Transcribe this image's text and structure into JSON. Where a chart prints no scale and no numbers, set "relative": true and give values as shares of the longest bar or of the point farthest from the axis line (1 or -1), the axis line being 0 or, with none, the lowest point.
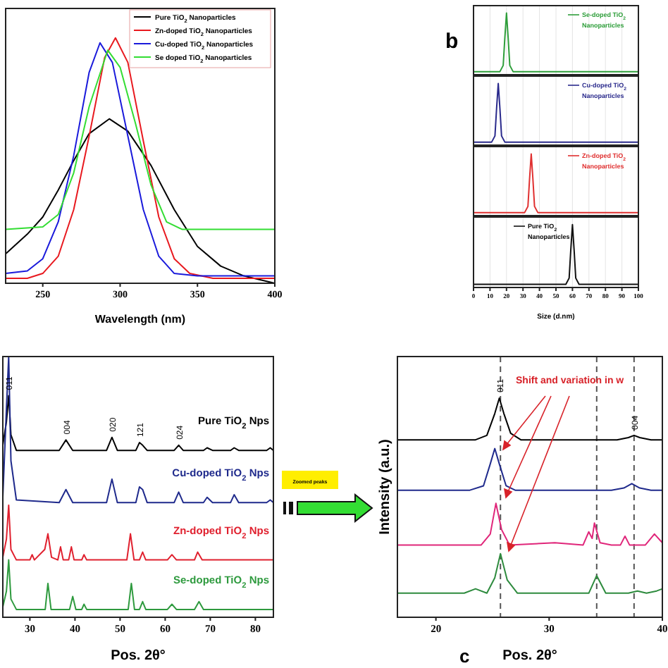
{
  "chart_data": [
    {
      "type": "line",
      "xlabel": "Wavelength (nm)",
      "xlim": [
        226,
        400
      ],
      "xticks": [
        250,
        300,
        350,
        400
      ],
      "relative": true,
      "legend": "top right",
      "series": [
        {
          "name": "Pure TiO$_{2}$ Nanoparticles",
          "color": "#000000",
          "x": [
            226,
            240,
            250,
            260,
            270,
            280,
            293,
            305,
            320,
            335,
            350,
            365,
            380,
            400
          ],
          "values": [
            0.12,
            0.2,
            0.27,
            0.38,
            0.5,
            0.61,
            0.67,
            0.62,
            0.48,
            0.3,
            0.15,
            0.07,
            0.03,
            0
          ]
        },
        {
          "name": "Zn-doped TiO$_{2}$ Nanoparticles",
          "color": "#e8191f",
          "x": [
            226,
            240,
            250,
            260,
            270,
            280,
            290,
            297,
            305,
            315,
            325,
            335,
            345,
            360,
            380,
            400
          ],
          "values": [
            0.02,
            0.02,
            0.04,
            0.11,
            0.3,
            0.6,
            0.92,
            1,
            0.9,
            0.58,
            0.27,
            0.1,
            0.04,
            0.02,
            0.02,
            0.02
          ]
        },
        {
          "name": "Cu-doped TiO$_{2}$ Nanoparticles",
          "color": "#1a1adb",
          "x": [
            226,
            240,
            250,
            260,
            270,
            280,
            287,
            295,
            305,
            315,
            325,
            335,
            350,
            400
          ],
          "values": [
            0.04,
            0.05,
            0.1,
            0.25,
            0.52,
            0.86,
            0.98,
            0.9,
            0.6,
            0.3,
            0.11,
            0.04,
            0.03,
            0.03
          ]
        },
        {
          "name": "Se doped TiO$_{2}$ Nanoparticles",
          "color": "#33dd33",
          "x": [
            226,
            250,
            260,
            270,
            280,
            292,
            300,
            310,
            320,
            330,
            340,
            400
          ],
          "values": [
            0.22,
            0.23,
            0.28,
            0.45,
            0.72,
            0.95,
            0.88,
            0.65,
            0.4,
            0.25,
            0.22,
            0.22
          ]
        }
      ]
    },
    {
      "type": "line",
      "xlim": [
        0,
        100
      ],
      "xticks": [
        0,
        10,
        20,
        30,
        40,
        50,
        60,
        70,
        80,
        90,
        100
      ],
      "relative": true,
      "grid": "x",
      "tick_labels": false,
      "legend": "top right",
      "annotations": [
        "b"
      ],
      "series": [
        {
          "name": "Se-doped TiO$_{2}$ Nanoparticles",
          "color": "#2e9e3a",
          "x": [
            0,
            16,
            18,
            19,
            20,
            21,
            22,
            24,
            100
          ],
          "values": [
            0.05,
            0.05,
            0.15,
            0.6,
            1,
            0.6,
            0.15,
            0.05,
            0.05
          ]
        }
      ]
    },
    {
      "type": "line",
      "xlim": [
        0,
        100
      ],
      "xticks": [
        0,
        10,
        20,
        30,
        40,
        50,
        60,
        70,
        80,
        90,
        100
      ],
      "relative": true,
      "grid": "x",
      "tick_labels": false,
      "legend": "top right",
      "series": [
        {
          "name": "Cu-doped TiO$_{2}$ Nanoparticles",
          "color": "#2a2a8c",
          "x": [
            0,
            11,
            13,
            14,
            15,
            16,
            17,
            19,
            100
          ],
          "values": [
            0.05,
            0.05,
            0.15,
            0.6,
            1,
            0.6,
            0.15,
            0.05,
            0.05
          ]
        }
      ]
    },
    {
      "type": "line",
      "xlim": [
        0,
        100
      ],
      "xticks": [
        0,
        10,
        20,
        30,
        40,
        50,
        60,
        70,
        80,
        90,
        100
      ],
      "relative": true,
      "grid": "x",
      "tick_labels": false,
      "legend": "top right",
      "series": [
        {
          "name": "Zn-doped TiO$_{2}$ Nanoparticles",
          "color": "#e03030",
          "x": [
            0,
            31,
            33,
            34,
            35,
            36,
            37,
            39,
            100
          ],
          "values": [
            0.05,
            0.05,
            0.15,
            0.6,
            1,
            0.6,
            0.15,
            0.05,
            0.05
          ]
        }
      ]
    },
    {
      "type": "line",
      "xlabel": "Size (d.nm)",
      "xlim": [
        0,
        100
      ],
      "xticks": [
        0,
        10,
        20,
        30,
        40,
        50,
        60,
        70,
        80,
        90,
        100
      ],
      "relative": true,
      "grid": "x",
      "tick_labels": "x",
      "legend": "top",
      "series": [
        {
          "name": "Pure TiO$_{2}$ Nanoparticles",
          "color": "#111111",
          "x": [
            0,
            56,
            58,
            59,
            60,
            61,
            62,
            64,
            100
          ],
          "values": [
            0.05,
            0.05,
            0.15,
            0.6,
            1,
            0.6,
            0.15,
            0.05,
            0.05
          ]
        }
      ]
    },
    {
      "type": "line",
      "xlabel": "Pos. 2θ°",
      "xlim": [
        24,
        84
      ],
      "xticks": [
        30,
        40,
        50,
        60,
        70,
        80
      ],
      "relative": true,
      "legend": false,
      "annotations": [
        "c",
        "Zoomed peaks",
        {
          "text": "011",
          "x": 25.3,
          "y": 0.85
        },
        {
          "text": "004",
          "x": 38,
          "y": 0.68
        },
        {
          "text": "020",
          "x": 48.2,
          "y": 0.69
        },
        {
          "text": "121",
          "x": 54.3,
          "y": 0.67
        },
        {
          "text": "024",
          "x": 63,
          "y": 0.66
        }
      ],
      "series": [
        {
          "name": "Pure TiO$_{2}$ Nps",
          "color": "#000000",
          "x": [
            24,
            24.8,
            25.3,
            25.8,
            27,
            36.5,
            38,
            39.5,
            47,
            48.2,
            49.4,
            53.5,
            54.3,
            55,
            56,
            62,
            63,
            64,
            68.5,
            69.3,
            70.5,
            74.5,
            75.3,
            76.3,
            82.5,
            83.3,
            84
          ],
          "values": [
            0.66,
            0.75,
            0.85,
            0.7,
            0.64,
            0.64,
            0.68,
            0.64,
            0.64,
            0.69,
            0.64,
            0.64,
            0.67,
            0.66,
            0.64,
            0.64,
            0.66,
            0.64,
            0.64,
            0.65,
            0.64,
            0.64,
            0.65,
            0.64,
            0.64,
            0.65,
            0.64
          ]
        },
        {
          "name": "Cu-doped TiO$_{2}$ Nps",
          "color": "#1f2a8c",
          "x": [
            24,
            24.8,
            25.3,
            25.8,
            27,
            36.5,
            38,
            39.5,
            47,
            48.2,
            49.4,
            53.5,
            54.3,
            55,
            56,
            62,
            63,
            64,
            68.5,
            69.3,
            70.5,
            74.5,
            75.3,
            76.3,
            82.5,
            83.3,
            84
          ],
          "values": [
            0.46,
            0.8,
            1,
            0.6,
            0.45,
            0.44,
            0.49,
            0.44,
            0.44,
            0.53,
            0.44,
            0.44,
            0.5,
            0.49,
            0.44,
            0.44,
            0.48,
            0.44,
            0.44,
            0.46,
            0.44,
            0.44,
            0.47,
            0.44,
            0.44,
            0.45,
            0.44
          ]
        },
        {
          "name": "Zn-doped TiO$_{2}$ Nps",
          "color": "#e0202e",
          "x": [
            24,
            24.8,
            25.3,
            25.8,
            27,
            30,
            30.5,
            31,
            33.3,
            34,
            34.8,
            36.2,
            36.8,
            37.4,
            38.6,
            39.2,
            39.8,
            41.5,
            42,
            42.6,
            51.5,
            52.3,
            53.1,
            54.3,
            55,
            55.7,
            60.5,
            61.5,
            62.5,
            66.5,
            67.2,
            68.2,
            84
          ],
          "values": [
            0.23,
            0.3,
            0.43,
            0.26,
            0.22,
            0.22,
            0.24,
            0.22,
            0.26,
            0.32,
            0.23,
            0.22,
            0.27,
            0.22,
            0.22,
            0.27,
            0.22,
            0.22,
            0.24,
            0.22,
            0.22,
            0.32,
            0.22,
            0.22,
            0.25,
            0.22,
            0.22,
            0.24,
            0.22,
            0.22,
            0.25,
            0.22,
            0.22
          ]
        },
        {
          "name": "Se-doped TiO$_{2}$ Nps",
          "color": "#2e9a3e",
          "x": [
            24,
            24.8,
            25.3,
            25.8,
            27,
            33.4,
            34,
            34.7,
            38.8,
            39.5,
            40.2,
            41.5,
            42,
            42.6,
            51.8,
            52.5,
            53.2,
            54.3,
            55,
            55.7,
            60.5,
            61.5,
            62.5,
            66.5,
            67.5,
            68.5,
            84
          ],
          "values": [
            0.04,
            0.1,
            0.22,
            0.07,
            0.03,
            0.03,
            0.13,
            0.03,
            0.03,
            0.08,
            0.03,
            0.03,
            0.05,
            0.03,
            0.03,
            0.13,
            0.03,
            0.03,
            0.06,
            0.03,
            0.03,
            0.05,
            0.03,
            0.03,
            0.06,
            0.03,
            0.03
          ]
        }
      ]
    },
    {
      "type": "line",
      "xlabel": "Pos. 2θ°",
      "ylabel": "Intensity (a.u.)",
      "xlim": [
        16.6,
        40
      ],
      "xticks": [
        20,
        30,
        40
      ],
      "relative": true,
      "legend": false,
      "annotations": [
        "Shift and variation in w",
        {
          "text": "011",
          "x": 25.6,
          "y": 1
        },
        {
          "text": "004",
          "x": 37.5,
          "y": 0.83
        }
      ],
      "ref_lines": [
        {
          "axis": "x",
          "value": 25.7,
          "color": "#555555",
          "line_style": "dashed"
        },
        {
          "axis": "x",
          "value": 34.2,
          "color": "#555555",
          "line_style": "dashed"
        },
        {
          "axis": "x",
          "value": 37.5,
          "color": "#555555",
          "line_style": "dashed"
        }
      ],
      "series": [
        {
          "color": "#000000",
          "x": [
            16.6,
            23.5,
            24.5,
            25.2,
            25.6,
            26,
            26.6,
            27.5,
            36,
            37,
            37.5,
            38,
            39,
            40
          ],
          "values": [
            0.81,
            0.81,
            0.83,
            0.93,
            1,
            0.93,
            0.84,
            0.81,
            0.81,
            0.82,
            0.83,
            0.82,
            0.81,
            0.81
          ]
        },
        {
          "color": "#1f2a8c",
          "x": [
            16.6,
            23,
            24.2,
            24.8,
            25.2,
            25.6,
            26.2,
            27,
            35.5,
            36.6,
            37.3,
            38,
            39,
            40
          ],
          "values": [
            0.58,
            0.58,
            0.6,
            0.7,
            0.77,
            0.7,
            0.6,
            0.58,
            0.58,
            0.59,
            0.61,
            0.59,
            0.58,
            0.58
          ]
        },
        {
          "color": "#e0267a",
          "x": [
            16.6,
            24,
            24.8,
            25.3,
            25.8,
            26.5,
            30.5,
            33,
            33.5,
            33.8,
            34,
            34.5,
            35.5,
            36.3,
            36.7,
            37.1,
            38.5,
            39.3,
            40
          ],
          "values": [
            0.33,
            0.33,
            0.38,
            0.52,
            0.4,
            0.33,
            0.34,
            0.33,
            0.39,
            0.36,
            0.43,
            0.34,
            0.33,
            0.33,
            0.37,
            0.33,
            0.33,
            0.38,
            0.34
          ]
        },
        {
          "color": "#2e8b3e",
          "x": [
            16.6,
            22.5,
            23.5,
            24.5,
            25.2,
            25.7,
            26.3,
            27.2,
            33.5,
            34.2,
            35,
            37,
            37.8,
            38.6,
            39.5,
            40
          ],
          "values": [
            0.11,
            0.11,
            0.13,
            0.11,
            0.18,
            0.29,
            0.17,
            0.11,
            0.11,
            0.19,
            0.11,
            0.11,
            0.12,
            0.11,
            0.12,
            0.13
          ]
        }
      ]
    }
  ]
}
